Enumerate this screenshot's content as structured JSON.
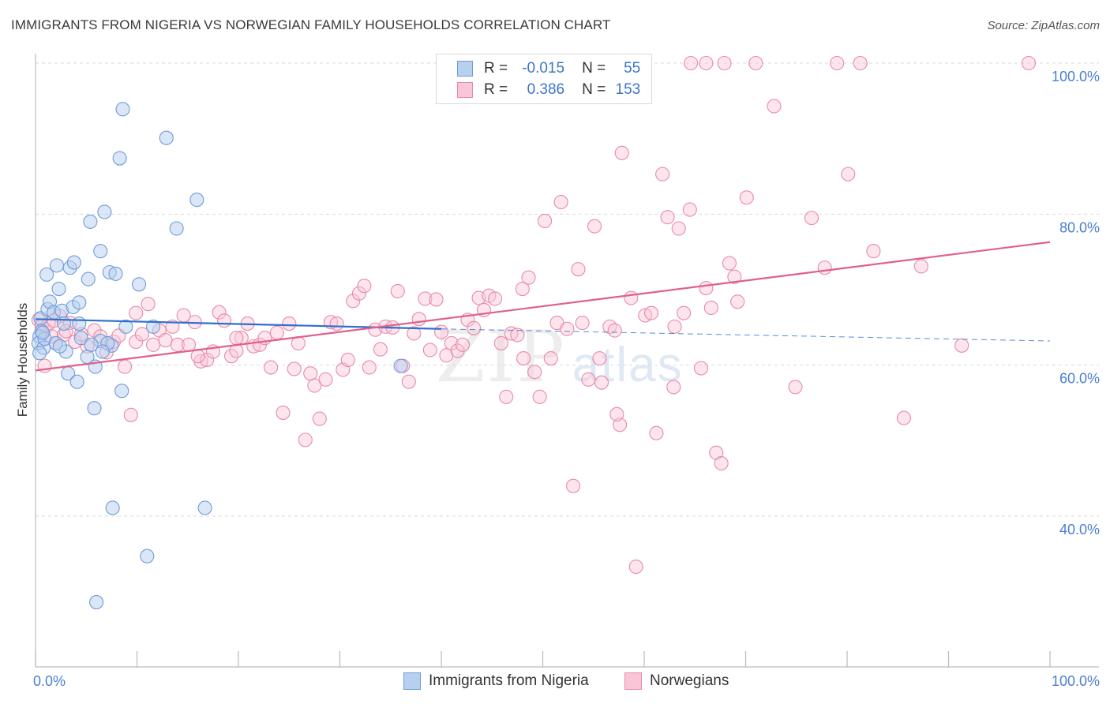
{
  "title": "IMMIGRANTS FROM NIGERIA VS NORWEGIAN FAMILY HOUSEHOLDS CORRELATION CHART",
  "source": "Source: ZipAtlas.com",
  "watermark": {
    "zip": "ZIP",
    "atlas": "atlas"
  },
  "legend": {
    "r_label": "R =",
    "n_label": "N =",
    "rows": [
      {
        "r": "-0.015",
        "n": "55"
      },
      {
        "r": "0.386",
        "n": "153"
      }
    ]
  },
  "colors": {
    "blue_fill": "#b8d0f0",
    "blue_stroke": "#6f9bd8",
    "blue_line": "#2f6fce",
    "pink_fill": "#f8c6d6",
    "pink_stroke": "#e88aaa",
    "pink_line": "#e0608a",
    "tick_text": "#4a7fd0"
  },
  "chart_data": {
    "type": "scatter",
    "title": "IMMIGRANTS FROM NIGERIA VS NORWEGIAN FAMILY HOUSEHOLDS CORRELATION CHART",
    "xlabel": "",
    "ylabel": "Family Households",
    "xlim": [
      0,
      100
    ],
    "ylim": [
      20,
      102
    ],
    "x_tick_labels": [
      "0.0%",
      "100.0%"
    ],
    "y_ticks": [
      40,
      60,
      80,
      100
    ],
    "y_tick_labels": [
      "40.0%",
      "60.0%",
      "80.0%",
      "100.0%"
    ],
    "legend_position": "bottom-center",
    "series": [
      {
        "name": "Immigrants from Nigeria",
        "r": -0.015,
        "n": 55,
        "trend": {
          "x0": 0,
          "y0": 66.1,
          "x1": 40,
          "y1": 64.8,
          "dashed_to_x": 100,
          "dashed_to_y": 63.2
        },
        "points": [
          [
            0.5,
            66.2
          ],
          [
            0.6,
            64.5
          ],
          [
            0.4,
            63.8
          ],
          [
            0.3,
            62.9
          ],
          [
            0.8,
            62.3
          ],
          [
            0.4,
            61.6
          ],
          [
            0.9,
            63.5
          ],
          [
            0.7,
            64.3
          ],
          [
            1.2,
            67.4
          ],
          [
            1.4,
            68.4
          ],
          [
            1.8,
            67.0
          ],
          [
            1.1,
            72.0
          ],
          [
            2.1,
            73.2
          ],
          [
            2.3,
            70.1
          ],
          [
            2.6,
            67.2
          ],
          [
            2.8,
            65.5
          ],
          [
            3.4,
            72.9
          ],
          [
            3.8,
            73.6
          ],
          [
            3.7,
            67.7
          ],
          [
            4.3,
            68.3
          ],
          [
            4.3,
            65.5
          ],
          [
            4.5,
            63.6
          ],
          [
            5.2,
            71.4
          ],
          [
            5.4,
            79.0
          ],
          [
            6.4,
            75.1
          ],
          [
            6.8,
            80.3
          ],
          [
            7.3,
            72.3
          ],
          [
            7.9,
            72.1
          ],
          [
            7.5,
            62.6
          ],
          [
            8.3,
            87.4
          ],
          [
            8.6,
            93.9
          ],
          [
            8.9,
            65.1
          ],
          [
            10.2,
            70.7
          ],
          [
            11.6,
            65.1
          ],
          [
            12.9,
            90.1
          ],
          [
            13.9,
            78.1
          ],
          [
            15.9,
            81.9
          ],
          [
            16.7,
            41.1
          ],
          [
            2.0,
            62.9
          ],
          [
            3.0,
            61.8
          ],
          [
            3.2,
            58.9
          ],
          [
            4.1,
            57.8
          ],
          [
            5.1,
            61.1
          ],
          [
            5.9,
            59.8
          ],
          [
            5.8,
            54.3
          ],
          [
            8.5,
            56.6
          ],
          [
            6.4,
            63.2
          ],
          [
            7.1,
            62.9
          ],
          [
            6.6,
            61.8
          ],
          [
            7.6,
            41.1
          ],
          [
            11.0,
            34.7
          ],
          [
            6.0,
            28.6
          ],
          [
            36.0,
            59.9
          ],
          [
            2.4,
            62.5
          ],
          [
            5.5,
            62.7
          ]
        ]
      },
      {
        "name": "Norwegians",
        "r": 0.386,
        "n": 153,
        "trend": {
          "x0": 0,
          "y0": 59.3,
          "x1": 100,
          "y1": 76.3
        },
        "points": [
          [
            0.3,
            66.0
          ],
          [
            0.6,
            65.2
          ],
          [
            0.9,
            64.8
          ],
          [
            1.3,
            65.5
          ],
          [
            1.6,
            63.8
          ],
          [
            2.0,
            62.9
          ],
          [
            2.4,
            66.5
          ],
          [
            2.8,
            64.0
          ],
          [
            3.4,
            65.6
          ],
          [
            3.9,
            63.1
          ],
          [
            4.5,
            64.1
          ],
          [
            5.1,
            62.5
          ],
          [
            5.8,
            64.6
          ],
          [
            6.4,
            63.8
          ],
          [
            7.0,
            61.7
          ],
          [
            7.7,
            63.1
          ],
          [
            8.2,
            63.9
          ],
          [
            8.8,
            59.8
          ],
          [
            9.4,
            53.4
          ],
          [
            9.9,
            63.1
          ],
          [
            10.5,
            64.1
          ],
          [
            11.1,
            68.1
          ],
          [
            11.6,
            62.7
          ],
          [
            12.2,
            64.6
          ],
          [
            12.8,
            63.3
          ],
          [
            13.5,
            65.1
          ],
          [
            14.0,
            62.7
          ],
          [
            14.6,
            66.6
          ],
          [
            15.1,
            62.7
          ],
          [
            15.7,
            65.7
          ],
          [
            16.3,
            60.5
          ],
          [
            16.9,
            60.7
          ],
          [
            17.5,
            61.8
          ],
          [
            18.1,
            67.0
          ],
          [
            18.6,
            65.9
          ],
          [
            19.3,
            61.2
          ],
          [
            19.8,
            61.9
          ],
          [
            20.3,
            63.6
          ],
          [
            20.9,
            65.5
          ],
          [
            21.5,
            62.5
          ],
          [
            22.1,
            62.7
          ],
          [
            22.6,
            63.6
          ],
          [
            23.2,
            59.7
          ],
          [
            23.8,
            64.3
          ],
          [
            24.4,
            53.7
          ],
          [
            25.0,
            65.5
          ],
          [
            25.5,
            59.5
          ],
          [
            25.9,
            62.9
          ],
          [
            26.6,
            50.1
          ],
          [
            27.1,
            58.9
          ],
          [
            27.5,
            57.3
          ],
          [
            28.0,
            52.9
          ],
          [
            28.6,
            58.1
          ],
          [
            29.1,
            65.7
          ],
          [
            29.7,
            65.5
          ],
          [
            30.3,
            59.4
          ],
          [
            30.8,
            60.7
          ],
          [
            31.3,
            68.5
          ],
          [
            31.9,
            69.5
          ],
          [
            32.4,
            70.5
          ],
          [
            32.9,
            59.7
          ],
          [
            33.5,
            64.7
          ],
          [
            34.0,
            62.1
          ],
          [
            34.5,
            65.1
          ],
          [
            35.2,
            65.0
          ],
          [
            35.7,
            69.8
          ],
          [
            36.2,
            59.9
          ],
          [
            36.8,
            57.8
          ],
          [
            37.3,
            64.2
          ],
          [
            37.8,
            66.1
          ],
          [
            38.4,
            68.8
          ],
          [
            38.9,
            62.0
          ],
          [
            39.5,
            68.7
          ],
          [
            40.0,
            64.4
          ],
          [
            40.5,
            61.3
          ],
          [
            41.0,
            62.9
          ],
          [
            41.6,
            61.9
          ],
          [
            42.1,
            62.7
          ],
          [
            42.6,
            66.0
          ],
          [
            43.2,
            64.9
          ],
          [
            43.7,
            68.9
          ],
          [
            44.2,
            67.3
          ],
          [
            44.7,
            69.2
          ],
          [
            45.3,
            68.8
          ],
          [
            45.9,
            62.9
          ],
          [
            46.4,
            55.8
          ],
          [
            46.9,
            64.2
          ],
          [
            47.5,
            64.0
          ],
          [
            48.0,
            70.1
          ],
          [
            48.6,
            71.6
          ],
          [
            48.1,
            60.9
          ],
          [
            49.2,
            59.1
          ],
          [
            49.7,
            55.8
          ],
          [
            50.2,
            79.1
          ],
          [
            50.8,
            60.9
          ],
          [
            51.4,
            65.6
          ],
          [
            51.8,
            81.6
          ],
          [
            52.4,
            64.8
          ],
          [
            53.0,
            44.0
          ],
          [
            53.5,
            72.7
          ],
          [
            53.9,
            65.6
          ],
          [
            54.5,
            58.1
          ],
          [
            55.1,
            78.4
          ],
          [
            55.6,
            60.9
          ],
          [
            55.8,
            57.7
          ],
          [
            56.6,
            65.1
          ],
          [
            57.1,
            64.6
          ],
          [
            57.6,
            52.1
          ],
          [
            57.3,
            53.5
          ],
          [
            57.8,
            88.1
          ],
          [
            58.7,
            68.9
          ],
          [
            59.2,
            33.3
          ],
          [
            60.1,
            66.6
          ],
          [
            60.7,
            66.9
          ],
          [
            61.2,
            51.0
          ],
          [
            61.8,
            85.3
          ],
          [
            62.3,
            79.6
          ],
          [
            62.9,
            57.1
          ],
          [
            63.4,
            78.1
          ],
          [
            63.9,
            66.9
          ],
          [
            64.5,
            80.6
          ],
          [
            65.6,
            59.6
          ],
          [
            66.1,
            70.2
          ],
          [
            66.6,
            67.6
          ],
          [
            67.1,
            48.4
          ],
          [
            67.6,
            47.0
          ],
          [
            68.4,
            73.5
          ],
          [
            69.2,
            68.4
          ],
          [
            70.1,
            82.2
          ],
          [
            71.0,
            100.0
          ],
          [
            72.8,
            94.3
          ],
          [
            74.9,
            57.1
          ],
          [
            76.5,
            79.5
          ],
          [
            77.8,
            72.9
          ],
          [
            79.0,
            100.0
          ],
          [
            80.1,
            85.3
          ],
          [
            81.3,
            100.0
          ],
          [
            82.6,
            75.1
          ],
          [
            85.6,
            53.0
          ],
          [
            87.3,
            73.1
          ],
          [
            91.3,
            62.6
          ],
          [
            97.9,
            100.0
          ],
          [
            66.1,
            100.0
          ],
          [
            67.9,
            100.0
          ],
          [
            68.9,
            71.7
          ],
          [
            64.6,
            100.0
          ],
          [
            9.9,
            66.9
          ],
          [
            3.0,
            64.5
          ],
          [
            1.8,
            65.9
          ],
          [
            16.0,
            61.2
          ],
          [
            63.0,
            65.1
          ],
          [
            0.9,
            59.9
          ],
          [
            19.8,
            63.6
          ]
        ]
      }
    ]
  }
}
